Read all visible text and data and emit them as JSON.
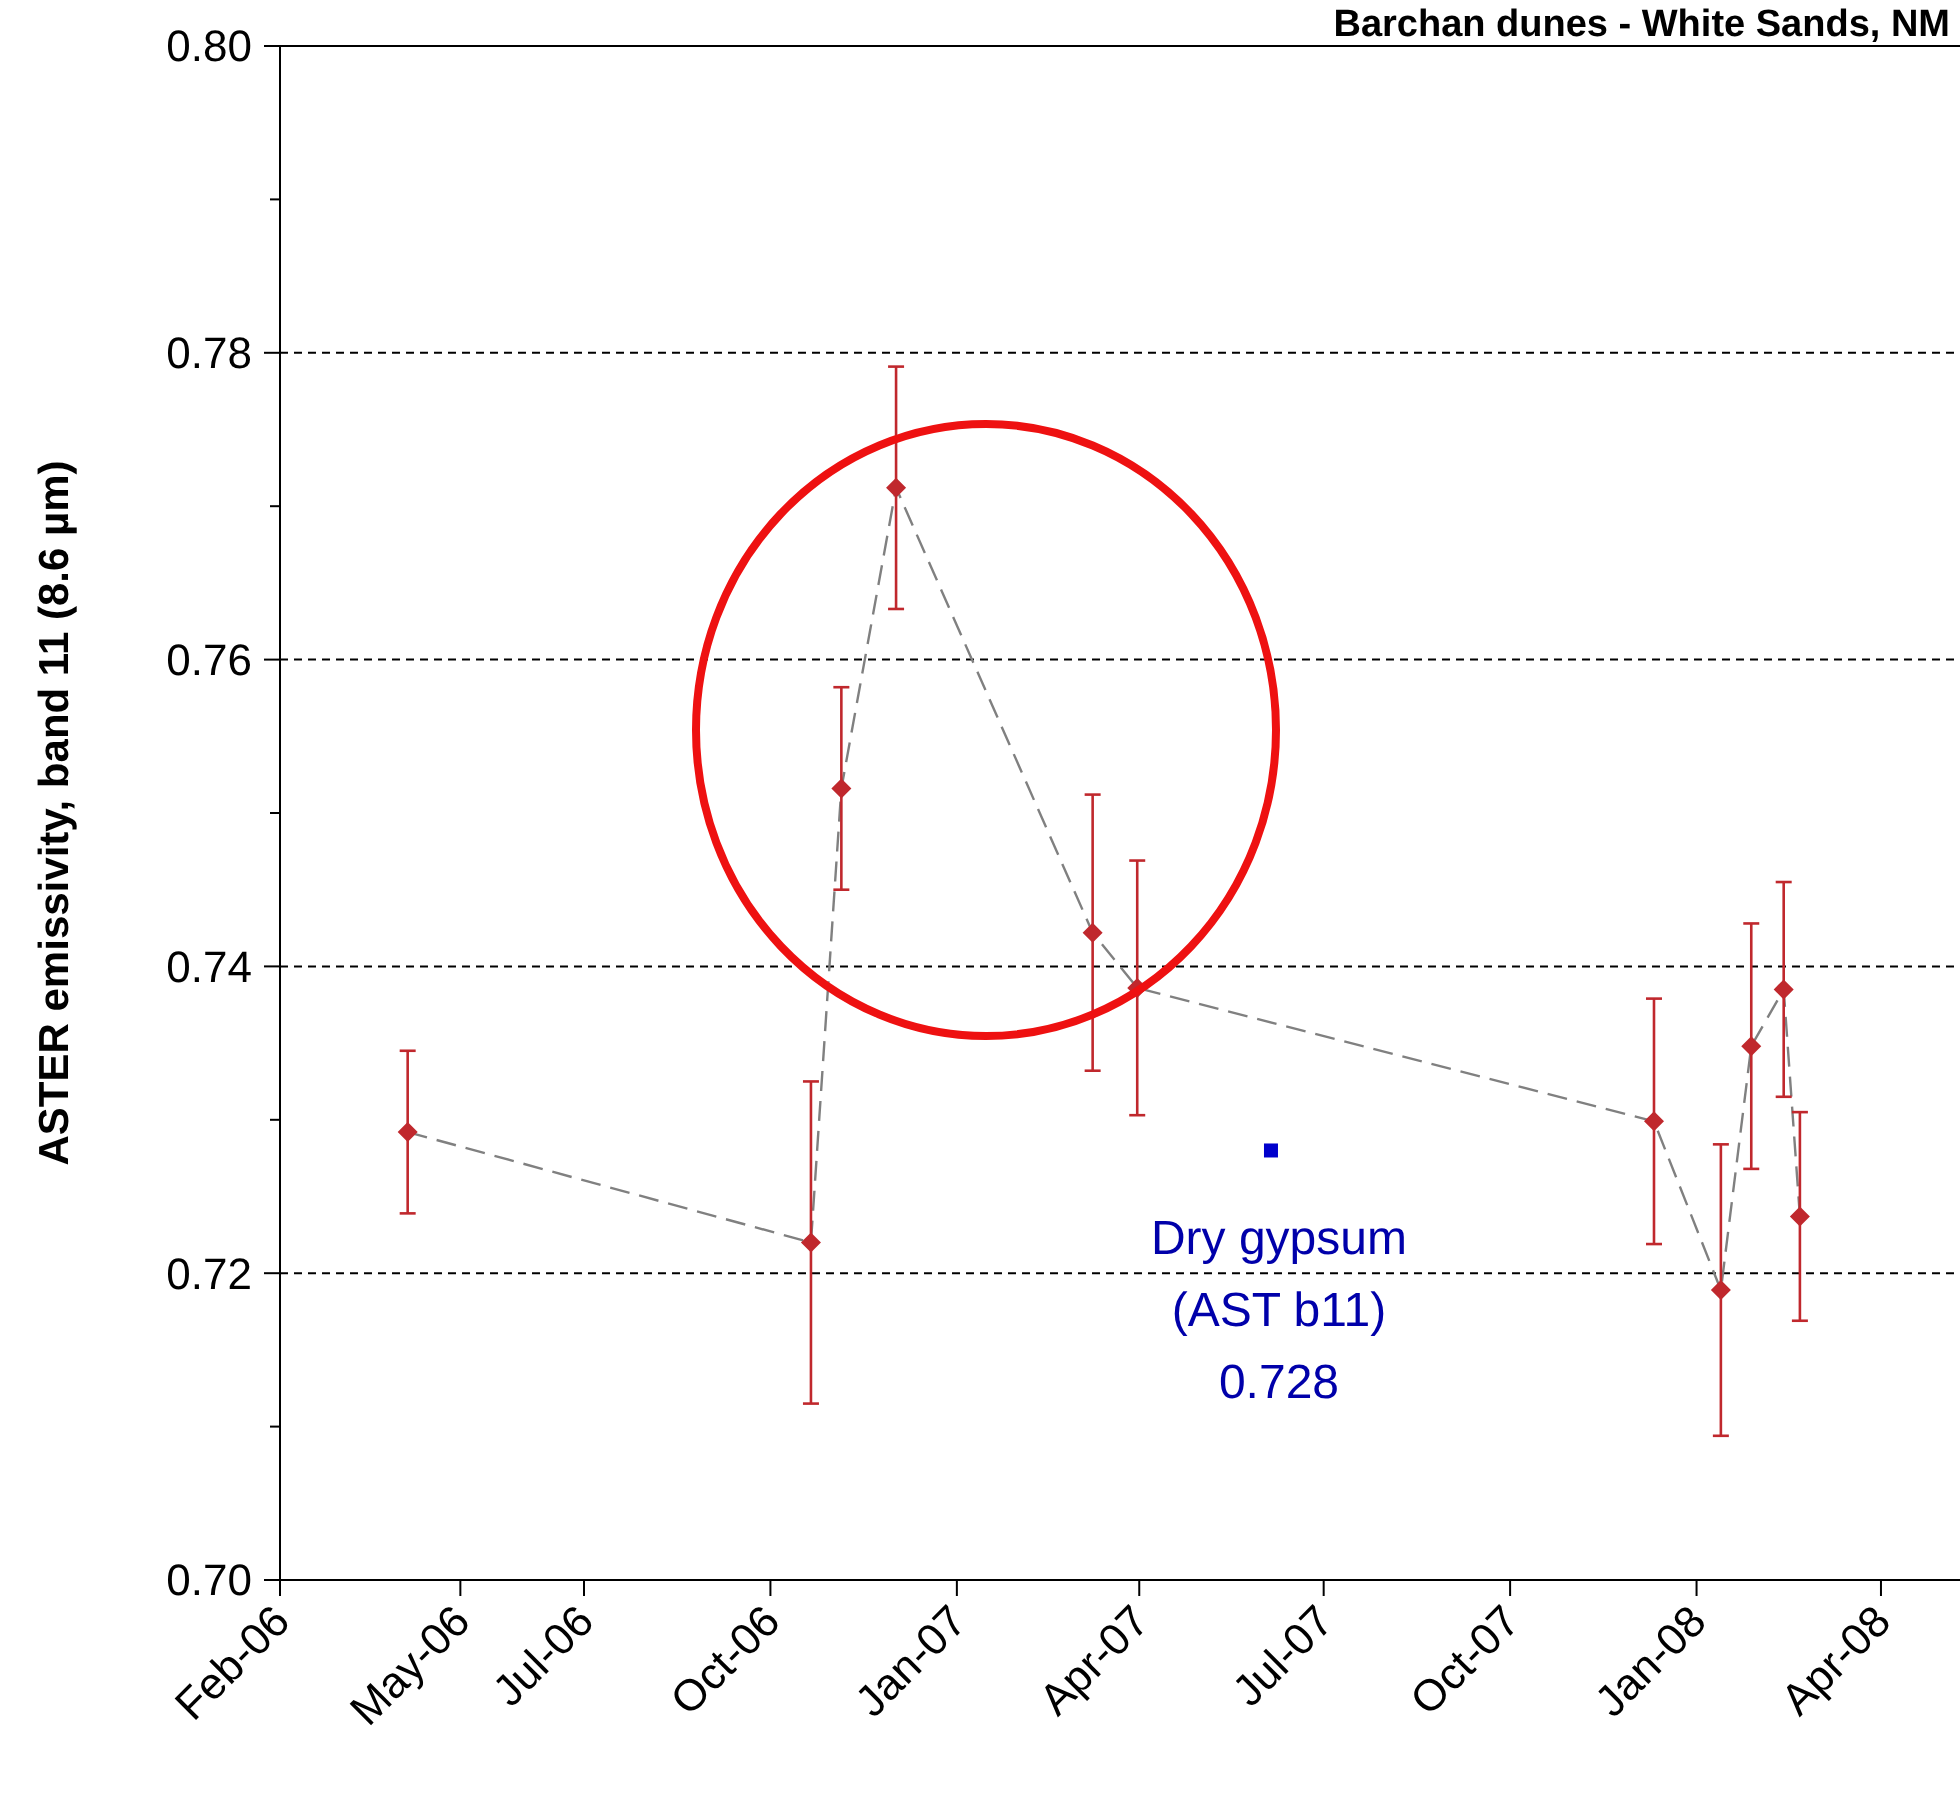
{
  "chart_data": {
    "type": "line",
    "title": "Barchan dunes - White Sands, NM",
    "ylabel": "ASTER emissivity, band 11 (8.6 µm)",
    "x": [
      "2006-04-05",
      "2006-10-21",
      "2006-11-05",
      "2006-12-02",
      "2007-03-09",
      "2007-03-31",
      "2007-12-11",
      "2008-01-13",
      "2008-01-28",
      "2008-02-13",
      "2008-02-21"
    ],
    "series": [
      {
        "type": "line",
        "color": "#808080",
        "marker": "none",
        "line_style": "dashed",
        "values": [
          0.7292,
          0.722,
          0.7516,
          0.7712,
          0.7422,
          0.7386,
          0.7299,
          0.7189,
          0.7348,
          0.7385,
          0.7237
        ]
      },
      {
        "type": "scatter",
        "color": "#c0282d",
        "marker": "diamond",
        "values": [
          0.7292,
          0.722,
          0.7516,
          0.7712,
          0.7422,
          0.7386,
          0.7299,
          0.7189,
          0.7348,
          0.7385,
          0.7237
        ],
        "errors": [
          0.0053,
          0.0105,
          0.0066,
          0.0079,
          0.009,
          0.0083,
          0.008,
          0.0095,
          0.008,
          0.007,
          0.0068
        ]
      },
      {
        "type": "scatter",
        "color": "#0000cc",
        "marker": "square",
        "x": [
          "2007-06-05"
        ],
        "values": [
          0.728
        ]
      }
    ],
    "annotations": [
      {
        "text": "Dry gypsum\n(AST b11)\n0.728",
        "x": "2007-06-05",
        "y": 0.728
      }
    ],
    "xlim": [
      "2006-02-01",
      "2008-05-10"
    ],
    "xticks": [
      {
        "value": "2006-02-01",
        "label": "Feb-06"
      },
      {
        "value": "2006-05-01",
        "label": "May-06"
      },
      {
        "value": "2006-07-01",
        "label": "Jul-06"
      },
      {
        "value": "2006-10-01",
        "label": "Oct-06"
      },
      {
        "value": "2007-01-01",
        "label": "Jan-07"
      },
      {
        "value": "2007-04-01",
        "label": "Apr-07"
      },
      {
        "value": "2007-07-01",
        "label": "Jul-07"
      },
      {
        "value": "2007-10-01",
        "label": "Oct-07"
      },
      {
        "value": "2008-01-01",
        "label": "Jan-08"
      },
      {
        "value": "2008-04-01",
        "label": "Apr-08"
      }
    ],
    "ylim": [
      0.7,
      0.8
    ],
    "yticks": [
      {
        "value": 0.7,
        "label": "0.70"
      },
      {
        "value": 0.71,
        "label": null
      },
      {
        "value": 0.72,
        "label": "0.72"
      },
      {
        "value": 0.73,
        "label": null
      },
      {
        "value": 0.74,
        "label": "0.74"
      },
      {
        "value": 0.75,
        "label": null
      },
      {
        "value": 0.76,
        "label": "0.76"
      },
      {
        "value": 0.77,
        "label": null
      },
      {
        "value": 0.78,
        "label": "0.78"
      },
      {
        "value": 0.79,
        "label": null
      },
      {
        "value": 0.8,
        "label": "0.80"
      }
    ],
    "grid": "y"
  }
}
